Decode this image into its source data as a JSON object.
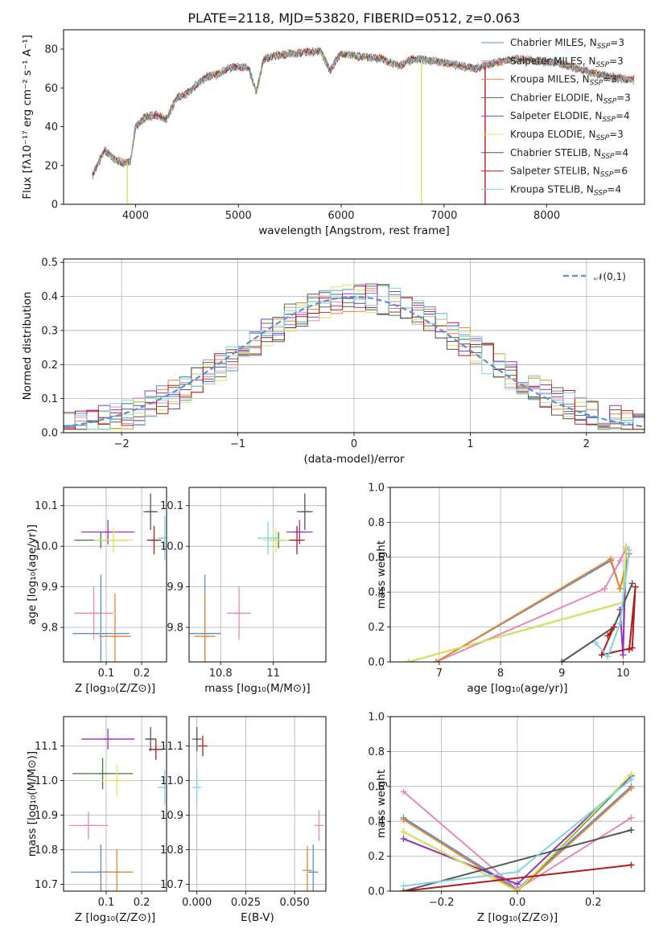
{
  "figure": {
    "title": "PLATE=2118, MJD=53820, FIBERID=0512, z=0.063"
  },
  "colors": {
    "Chabrier MILES": "#5b8fd6",
    "Salpeter MILES": "#e887b8",
    "Kroupa MILES": "#e8862f",
    "Chabrier ELODIE": "#3f7a3f",
    "Salpeter ELODIE": "#9932b8",
    "Kroupa ELODIE": "#d4e85a",
    "Chabrier STELIB": "#555555",
    "Salpeter STELIB": "#b01c1c",
    "Kroupa STELIB": "#7fd4e0"
  },
  "legend_spectrum": [
    {
      "name": "Chabrier MILES",
      "label": "Chabrier MILES, N",
      "sub": "SSP",
      "tail": "=3"
    },
    {
      "name": "Salpeter MILES",
      "label": "Salpeter MILES, N",
      "sub": "SSP",
      "tail": "=3"
    },
    {
      "name": "Kroupa MILES",
      "label": "Kroupa MILES, N",
      "sub": "SSP",
      "tail": "=3"
    },
    {
      "name": "Chabrier ELODIE",
      "label": "Chabrier ELODIE, N",
      "sub": "SSP",
      "tail": "=3"
    },
    {
      "name": "Salpeter ELODIE",
      "label": "Salpeter ELODIE, N",
      "sub": "SSP",
      "tail": "=4"
    },
    {
      "name": "Kroupa ELODIE",
      "label": "Kroupa ELODIE, N",
      "sub": "SSP",
      "tail": "=3"
    },
    {
      "name": "Chabrier STELIB",
      "label": "Chabrier STELIB, N",
      "sub": "SSP",
      "tail": "=4"
    },
    {
      "name": "Salpeter STELIB",
      "label": "Salpeter STELIB, N",
      "sub": "SSP",
      "tail": "=6"
    },
    {
      "name": "Kroupa STELIB",
      "label": "Kroupa STELIB, N",
      "sub": "SSP",
      "tail": "=4"
    }
  ],
  "chart_data": [
    {
      "id": "spectrum",
      "type": "line",
      "xlabel": "wavelength [Angstrom, rest frame]",
      "ylabel": "Flux [fλ10⁻¹⁷ erg cm⁻² s⁻¹ A⁻¹]",
      "xlim": [
        3300,
        8950
      ],
      "ylim": [
        0,
        90
      ],
      "xticks": [
        4000,
        5000,
        6000,
        7000,
        8000
      ],
      "yticks": [
        0,
        20,
        40,
        60,
        80
      ],
      "x": [
        3580,
        3700,
        3800,
        3900,
        3950,
        4000,
        4100,
        4200,
        4300,
        4400,
        4500,
        4600,
        4700,
        4800,
        4900,
        5000,
        5100,
        5175,
        5250,
        5400,
        5600,
        5800,
        5890,
        6000,
        6200,
        6400,
        6563,
        6700,
        6900,
        7100,
        7300,
        7500,
        7700,
        7900,
        8100,
        8300,
        8500,
        8700,
        8850
      ],
      "y": [
        15,
        28,
        23,
        21,
        22,
        40,
        45,
        46,
        44,
        55,
        57,
        62,
        66,
        67,
        70,
        71,
        70,
        58,
        75,
        77,
        78,
        79,
        69,
        78,
        76,
        75,
        71,
        75,
        74,
        72,
        70,
        73,
        75,
        74,
        73,
        70,
        67,
        65,
        64
      ],
      "dropouts": [
        {
          "series": "Kroupa ELODIE",
          "x": 3920
        },
        {
          "series": "Kroupa ELODIE",
          "x": 6780
        },
        {
          "series": "Salpeter STELIB",
          "x": 7400
        }
      ]
    },
    {
      "id": "residual-hist",
      "type": "histogram",
      "xlabel": "(data-model)/error",
      "ylabel": "Normed distribution",
      "xlim": [
        -2.5,
        2.5
      ],
      "ylim": [
        0,
        0.51
      ],
      "xticks": [
        -2,
        -1,
        0,
        1,
        2
      ],
      "yticks": [
        0.0,
        0.1,
        0.2,
        0.3,
        0.4,
        0.5
      ],
      "grid": true,
      "reference_curve": {
        "label": "𝒩(0,1)",
        "mean": 0,
        "sigma": 1
      },
      "bin_width": 0.1,
      "legend_position": "upper right"
    },
    {
      "id": "age-vs-Z",
      "type": "errorbar",
      "xlabel": "Z [log₁₀(Z/Z⊙)]",
      "ylabel": "age  [log₁₀(age/yr)]",
      "xlim": [
        -0.02,
        0.27
      ],
      "ylim": [
        9.715,
        10.145
      ],
      "xticks": [
        0.1,
        0.2
      ],
      "yticks": [
        9.8,
        9.9,
        10.0,
        10.1
      ],
      "points": [
        {
          "series": "Chabrier STELIB",
          "x": 0.225,
          "y": 10.085,
          "xerr": 0.02,
          "yerr": 0.045
        },
        {
          "series": "Salpeter ELODIE",
          "x": 0.105,
          "y": 10.035,
          "xerr": 0.075,
          "yerr": 0.03
        },
        {
          "series": "Chabrier ELODIE",
          "x": 0.085,
          "y": 10.015,
          "xerr": 0.075,
          "yerr": 0.02
        },
        {
          "series": "Kroupa ELODIE",
          "x": 0.12,
          "y": 10.015,
          "xerr": 0.055,
          "yerr": 0.03
        },
        {
          "series": "Salpeter STELIB",
          "x": 0.235,
          "y": 10.015,
          "xerr": 0.02,
          "yerr": 0.035
        },
        {
          "series": "Kroupa STELIB",
          "x": 0.265,
          "y": 10.02,
          "xerr": 0.02,
          "yerr": 0.055
        },
        {
          "series": "Salpeter MILES",
          "x": 0.065,
          "y": 9.835,
          "xerr": 0.055,
          "yerr": 0.065
        },
        {
          "series": "Chabrier MILES",
          "x": 0.085,
          "y": 9.785,
          "xerr": 0.08,
          "yerr": 0.145
        },
        {
          "series": "Kroupa MILES",
          "x": 0.125,
          "y": 9.778,
          "xerr": 0.045,
          "yerr": 0.105
        }
      ]
    },
    {
      "id": "age-vs-mass",
      "type": "errorbar",
      "xlabel": "mass [log₁₀(M/M⊙)]",
      "ylabel": "",
      "xlim": [
        10.68,
        11.2
      ],
      "ylim": [
        9.715,
        10.145
      ],
      "xticks": [
        10.8,
        11.0
      ],
      "yticks": [
        9.8,
        9.9,
        10.0,
        10.1
      ],
      "points": [
        {
          "series": "Chabrier STELIB",
          "x": 11.12,
          "y": 10.085,
          "xerr": 0.03,
          "yerr": 0.045
        },
        {
          "series": "Salpeter ELODIE",
          "x": 11.1,
          "y": 10.035,
          "xerr": 0.05,
          "yerr": 0.03
        },
        {
          "series": "Chabrier ELODIE",
          "x": 11.02,
          "y": 10.015,
          "xerr": 0.04,
          "yerr": 0.02
        },
        {
          "series": "Kroupa ELODIE",
          "x": 11.01,
          "y": 10.015,
          "xerr": 0.05,
          "yerr": 0.03
        },
        {
          "series": "Salpeter STELIB",
          "x": 11.09,
          "y": 10.015,
          "xerr": 0.03,
          "yerr": 0.035
        },
        {
          "series": "Kroupa STELIB",
          "x": 10.98,
          "y": 10.02,
          "xerr": 0.04,
          "yerr": 0.04
        },
        {
          "series": "Salpeter MILES",
          "x": 10.87,
          "y": 9.835,
          "xerr": 0.045,
          "yerr": 0.065
        },
        {
          "series": "Chabrier MILES",
          "x": 10.74,
          "y": 9.785,
          "xerr": 0.06,
          "yerr": 0.145
        },
        {
          "series": "Kroupa MILES",
          "x": 10.74,
          "y": 9.778,
          "xerr": 0.04,
          "yerr": 0.105
        }
      ]
    },
    {
      "id": "weight-vs-age",
      "type": "line",
      "xlabel": "age  [log₁₀(age/yr)]",
      "ylabel": "mass weight",
      "xlim": [
        6.2,
        10.35
      ],
      "ylim": [
        0,
        1.0
      ],
      "xticks": [
        7,
        8,
        9,
        10
      ],
      "yticks": [
        0.0,
        0.2,
        0.4,
        0.6,
        0.8,
        1.0
      ],
      "grid": true,
      "series": [
        {
          "name": "Chabrier MILES",
          "x": [
            6.95,
            9.8,
            9.95,
            10.1
          ],
          "y": [
            0.0,
            0.58,
            0.42,
            0.62
          ]
        },
        {
          "name": "Salpeter MILES",
          "x": [
            6.95,
            9.7,
            9.95,
            10.05
          ],
          "y": [
            0.0,
            0.42,
            0.58,
            0.65
          ]
        },
        {
          "name": "Kroupa MILES",
          "x": [
            6.95,
            9.8,
            9.95,
            10.1
          ],
          "y": [
            0.0,
            0.59,
            0.42,
            0.62
          ]
        },
        {
          "name": "Chabrier ELODIE",
          "x": [
            6.5,
            10.0,
            10.05
          ],
          "y": [
            0.0,
            0.34,
            0.66
          ]
        },
        {
          "name": "Salpeter ELODIE",
          "x": [
            9.95,
            10.0,
            10.05
          ],
          "y": [
            0.3,
            0.04,
            0.66
          ]
        },
        {
          "name": "Kroupa ELODIE",
          "x": [
            6.5,
            10.0,
            10.05
          ],
          "y": [
            0.0,
            0.34,
            0.66
          ]
        },
        {
          "name": "Chabrier STELIB",
          "x": [
            9.0,
            9.85,
            10.15
          ],
          "y": [
            0.0,
            0.2,
            0.45
          ]
        },
        {
          "name": "Salpeter STELIB",
          "x": [
            9.75,
            9.85,
            9.65,
            10.15,
            10.2,
            10.1
          ],
          "y": [
            0.15,
            0.2,
            0.04,
            0.08,
            0.43,
            0.07
          ]
        },
        {
          "name": "Kroupa STELIB",
          "x": [
            9.55,
            9.75,
            9.95,
            10.1
          ],
          "y": [
            0.11,
            0.03,
            0.22,
            0.64
          ]
        }
      ]
    },
    {
      "id": "mass-vs-Z",
      "type": "errorbar",
      "xlabel": "Z [log₁₀(Z/Z⊙)]",
      "ylabel": "mass [log₁₀(M/M⊙)]",
      "xlim": [
        -0.02,
        0.27
      ],
      "ylim": [
        10.68,
        11.185
      ],
      "xticks": [
        0.1,
        0.2
      ],
      "yticks": [
        10.7,
        10.8,
        10.9,
        11.0,
        11.1
      ],
      "points": [
        {
          "series": "Chabrier STELIB",
          "x": 0.225,
          "y": 11.12,
          "xerr": 0.015,
          "yerr": 0.035
        },
        {
          "series": "Salpeter ELODIE",
          "x": 0.105,
          "y": 11.12,
          "xerr": 0.075,
          "yerr": 0.03
        },
        {
          "series": "Salpeter STELIB",
          "x": 0.24,
          "y": 11.09,
          "xerr": 0.02,
          "yerr": 0.03
        },
        {
          "series": "Chabrier ELODIE",
          "x": 0.09,
          "y": 11.02,
          "xerr": 0.085,
          "yerr": 0.045
        },
        {
          "series": "Kroupa ELODIE",
          "x": 0.13,
          "y": 11.0,
          "xerr": 0.045,
          "yerr": 0.045
        },
        {
          "series": "Kroupa STELIB",
          "x": 0.265,
          "y": 10.98,
          "xerr": 0.02,
          "yerr": 0.05
        },
        {
          "series": "Salpeter MILES",
          "x": 0.05,
          "y": 10.87,
          "xerr": 0.055,
          "yerr": 0.04
        },
        {
          "series": "Chabrier MILES",
          "x": 0.085,
          "y": 10.735,
          "xerr": 0.085,
          "yerr": 0.08
        },
        {
          "series": "Kroupa MILES",
          "x": 0.13,
          "y": 10.735,
          "xerr": 0.045,
          "yerr": 0.065
        }
      ]
    },
    {
      "id": "mass-vs-ebv",
      "type": "errorbar",
      "xlabel": "E(B-V)",
      "ylabel": "",
      "xlim": [
        -0.004,
        0.066
      ],
      "ylim": [
        10.68,
        11.185
      ],
      "xticks": [
        0.0,
        0.025,
        0.05
      ],
      "xticklabels": [
        "0.000",
        "0.025",
        "0.050"
      ],
      "yticks": [
        10.7,
        10.8,
        10.9,
        11.0,
        11.1
      ],
      "points": [
        {
          "series": "Chabrier STELIB",
          "x": 0.0,
          "y": 11.12,
          "xerr": 0.0,
          "yerr": 0.035
        },
        {
          "series": "Salpeter STELIB",
          "x": 0.003,
          "y": 11.1,
          "xerr": 0.0,
          "yerr": 0.03
        },
        {
          "series": "Kroupa STELIB",
          "x": 0.0,
          "y": 10.98,
          "xerr": 0.0,
          "yerr": 0.05
        },
        {
          "series": "Salpeter MILES",
          "x": 0.0625,
          "y": 10.87,
          "xerr": 0.0,
          "yerr": 0.045
        },
        {
          "series": "Chabrier MILES",
          "x": 0.0595,
          "y": 10.735,
          "xerr": 0.0,
          "yerr": 0.08
        },
        {
          "series": "Kroupa MILES",
          "x": 0.0565,
          "y": 10.74,
          "xerr": 0.0,
          "yerr": 0.07
        }
      ]
    },
    {
      "id": "weight-vs-Z",
      "type": "line",
      "xlabel": "Z [log₁₀(Z/Z⊙)]",
      "ylabel": "mass weight",
      "xlim": [
        -0.335,
        0.335
      ],
      "ylim": [
        0,
        1.0
      ],
      "xticks": [
        -0.2,
        0.0,
        0.2
      ],
      "xticklabels": [
        "−0.2",
        "0.0",
        "0.2"
      ],
      "yticks": [
        0.0,
        0.2,
        0.4,
        0.6,
        0.8,
        1.0
      ],
      "grid": true,
      "series": [
        {
          "name": "Chabrier MILES",
          "x": [
            -0.3,
            0.0,
            0.3
          ],
          "y": [
            0.42,
            0.01,
            0.6
          ]
        },
        {
          "name": "Salpeter MILES",
          "x": [
            -0.3,
            0.0,
            0.3
          ],
          "y": [
            0.57,
            0.01,
            0.42
          ]
        },
        {
          "name": "Kroupa MILES",
          "x": [
            -0.3,
            0.0,
            0.3
          ],
          "y": [
            0.41,
            0.0,
            0.59
          ]
        },
        {
          "name": "Chabrier ELODIE",
          "x": [
            -0.3,
            0.0,
            0.3
          ],
          "y": [
            0.34,
            0.0,
            0.66
          ]
        },
        {
          "name": "Salpeter ELODIE",
          "x": [
            -0.3,
            0.0,
            0.3
          ],
          "y": [
            0.3,
            0.04,
            0.66
          ]
        },
        {
          "name": "Kroupa ELODIE",
          "x": [
            -0.3,
            0.0,
            0.3
          ],
          "y": [
            0.34,
            0.0,
            0.67
          ]
        },
        {
          "name": "Chabrier STELIB",
          "x": [
            -0.3,
            0.3
          ],
          "y": [
            0.0,
            0.35
          ]
        },
        {
          "name": "Salpeter STELIB",
          "x": [
            -0.3,
            0.3
          ],
          "y": [
            0.0,
            0.15
          ]
        },
        {
          "name": "Kroupa STELIB",
          "x": [
            -0.3,
            0.0,
            0.3
          ],
          "y": [
            0.03,
            0.11,
            0.64
          ]
        }
      ]
    }
  ]
}
